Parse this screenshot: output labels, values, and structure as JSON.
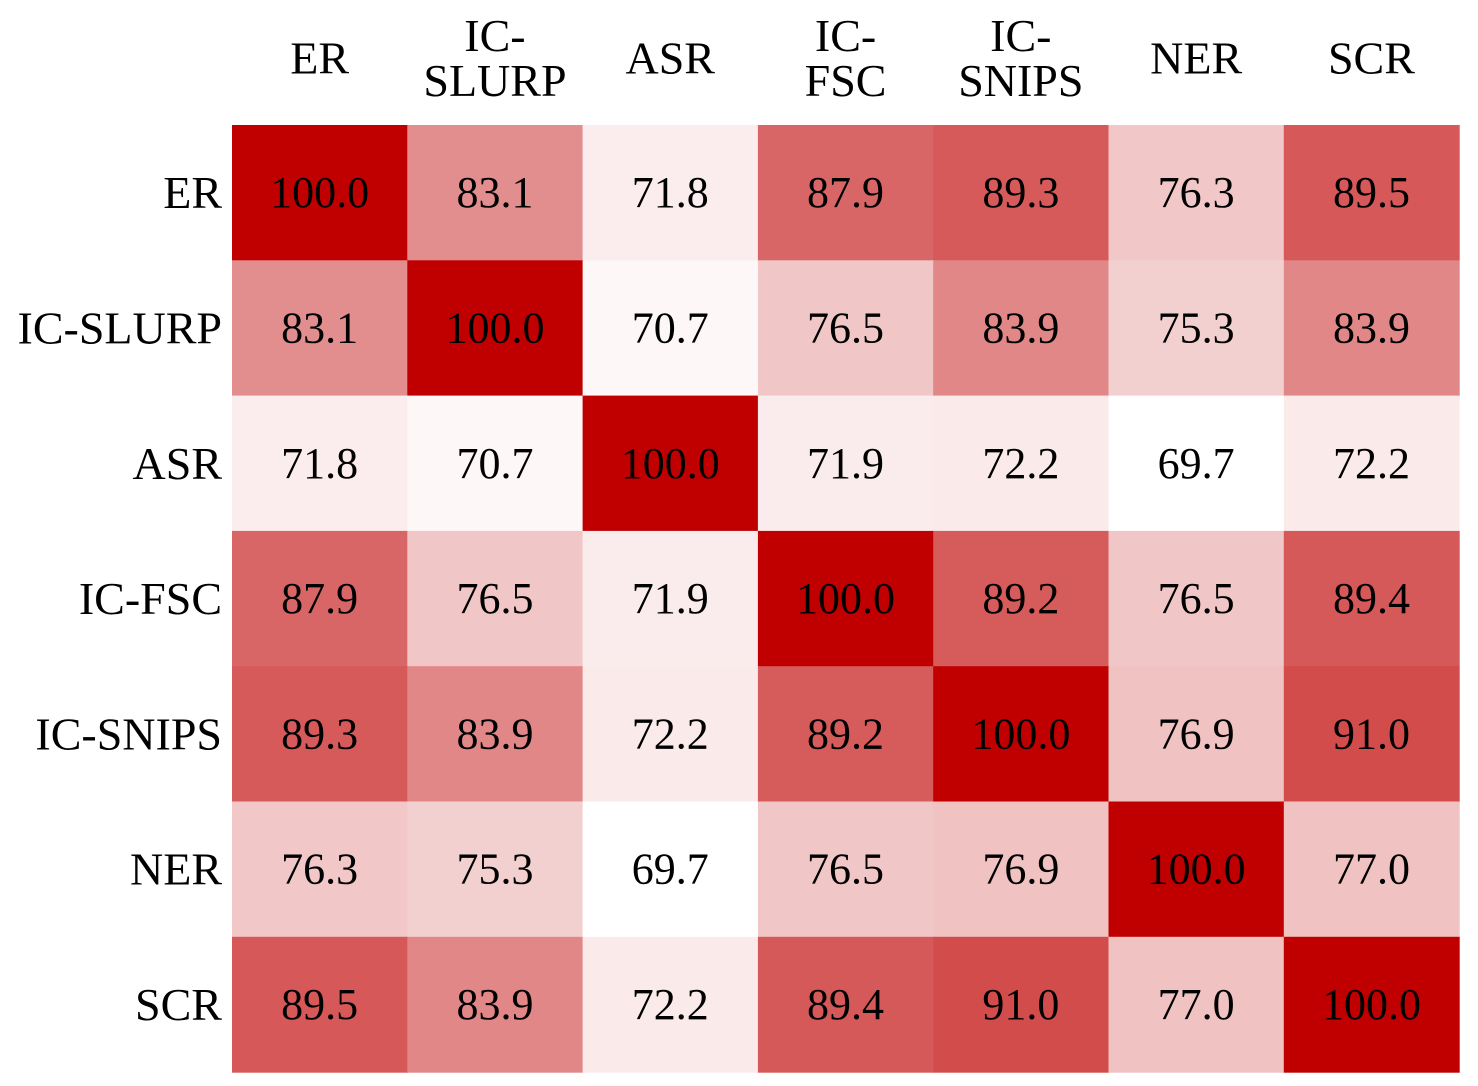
{
  "chart_data": {
    "type": "heatmap",
    "title": "",
    "xlabel": "",
    "ylabel": "",
    "column_labels": [
      [
        "ER"
      ],
      [
        "IC-",
        "SLURP"
      ],
      [
        "ASR"
      ],
      [
        "IC-",
        "FSC"
      ],
      [
        "IC-",
        "SNIPS"
      ],
      [
        "NER"
      ],
      [
        "SCR"
      ]
    ],
    "row_labels": [
      "ER",
      "IC-SLURP",
      "ASR",
      "IC-FSC",
      "IC-SNIPS",
      "NER",
      "SCR"
    ],
    "values": [
      [
        100.0,
        83.1,
        71.8,
        87.9,
        89.3,
        76.3,
        89.5
      ],
      [
        83.1,
        100.0,
        70.7,
        76.5,
        83.9,
        75.3,
        83.9
      ],
      [
        71.8,
        70.7,
        100.0,
        71.9,
        72.2,
        69.7,
        72.2
      ],
      [
        87.9,
        76.5,
        71.9,
        100.0,
        89.2,
        76.5,
        89.4
      ],
      [
        89.3,
        83.9,
        72.2,
        89.2,
        100.0,
        76.9,
        91.0
      ],
      [
        76.3,
        75.3,
        69.7,
        76.5,
        76.9,
        100.0,
        77.0
      ],
      [
        89.5,
        83.9,
        72.2,
        89.4,
        91.0,
        77.0,
        100.0
      ]
    ],
    "value_format": "0.0",
    "colormap": {
      "low_color": "#ffffff",
      "high_color": "#c00000",
      "vmin": 69.7,
      "vmax": 100.0
    },
    "legend": "none",
    "grid": false
  }
}
